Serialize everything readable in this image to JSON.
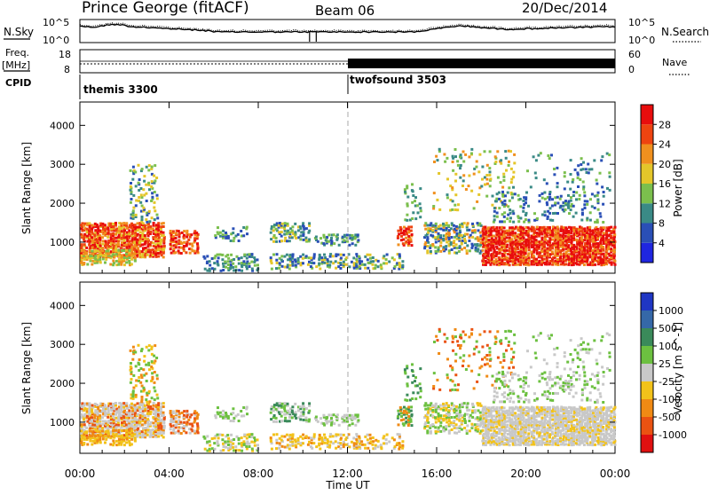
{
  "header": {
    "station": "Prince George (fitACF)",
    "beam": "Beam 06",
    "date": "20/Dec/2014"
  },
  "labels": {
    "nsky": "N.Sky",
    "nsearch": "N.Search",
    "freq": "Freq.",
    "mhz": "[MHz]",
    "nave": "Nave",
    "cpid": "CPID"
  },
  "noise_axis": {
    "top": "10^5",
    "bottom": "10^0"
  },
  "freq_axis": {
    "left_ticks": [
      "18",
      "8"
    ],
    "right_ticks": [
      "60",
      "0"
    ]
  },
  "cpid_blocks": [
    {
      "label": "themis 3300",
      "start_hour": 0
    },
    {
      "label": "twofsound 3503",
      "start_hour": 12
    }
  ],
  "chart_data": [
    {
      "type": "heatmap",
      "name": "power",
      "ylabel": "Slant Range [km]",
      "ylim": [
        200,
        4600
      ],
      "yticks": [
        1000,
        2000,
        3000,
        4000
      ],
      "xlim": [
        0,
        24
      ],
      "colorbar": {
        "label": "Power [dB]",
        "ticks": [
          "4",
          "8",
          "12",
          "16",
          "20",
          "24",
          "28"
        ],
        "colors": [
          "#1f26e0",
          "#2a4fb6",
          "#3a8a86",
          "#7bbf4d",
          "#e4c62a",
          "#f0901e",
          "#ee4410",
          "#e80d0d"
        ]
      }
    },
    {
      "type": "heatmap",
      "name": "velocity",
      "ylabel": "Slant Range [km]",
      "ylim": [
        200,
        4600
      ],
      "yticks": [
        1000,
        2000,
        3000,
        4000
      ],
      "xlim": [
        0,
        24
      ],
      "colorbar": {
        "label": "Velocity [m s^-1]",
        "ticks": [
          "1000",
          "500",
          "100",
          "25",
          "-25",
          "-100",
          "-500",
          "-1000"
        ],
        "colors": [
          "#1f36c4",
          "#3568a8",
          "#3a8a5a",
          "#6cc040",
          "#c8c8c8",
          "#f2c21a",
          "#f08a14",
          "#ea5212",
          "#e01010"
        ]
      }
    }
  ],
  "x_axis": {
    "label": "Time UT",
    "ticks": [
      "00:00",
      "04:00",
      "08:00",
      "12:00",
      "16:00",
      "20:00",
      "00:00"
    ]
  }
}
